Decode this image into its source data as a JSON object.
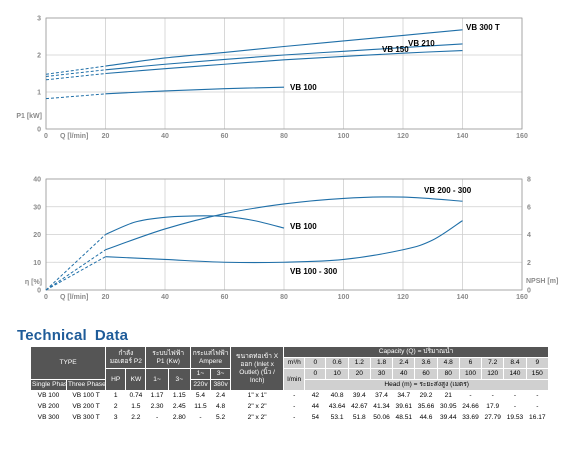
{
  "colors": {
    "curve": "#1f6fa8",
    "grid": "#cfcfcf",
    "axis": "#9a9a9a",
    "header": "#555555",
    "light_header": "#d0d0d0",
    "title": "#1f5c99"
  },
  "chart_data": [
    {
      "type": "line",
      "title": "",
      "xlabel": "Q [l/min]",
      "ylabel": "P1 [kW]",
      "xlim": [
        0,
        160
      ],
      "ylim": [
        0,
        3
      ],
      "xticks": [
        0,
        20,
        40,
        60,
        80,
        100,
        120,
        140,
        160
      ],
      "yticks": [
        0,
        1,
        2,
        3
      ],
      "grid": true,
      "series": [
        {
          "name": "VB 300 T",
          "dashed_x": [
            0,
            20
          ],
          "x": [
            20,
            40,
            60,
            80,
            100,
            120,
            140
          ],
          "y": [
            1.7,
            1.92,
            2.07,
            2.23,
            2.38,
            2.53,
            2.68
          ],
          "dash_y": [
            1.48,
            1.7
          ]
        },
        {
          "name": "VB 210",
          "x": [
            20,
            40,
            60,
            80,
            100,
            120,
            140
          ],
          "y": [
            1.6,
            1.75,
            1.88,
            2.0,
            2.1,
            2.2,
            2.3
          ],
          "dash_y": [
            1.42,
            1.6
          ]
        },
        {
          "name": "VB 150",
          "x": [
            20,
            40,
            60,
            80,
            100,
            120,
            140
          ],
          "y": [
            1.5,
            1.63,
            1.75,
            1.87,
            1.96,
            2.05,
            2.12
          ],
          "dash_y": [
            1.33,
            1.5
          ]
        },
        {
          "name": "VB 100",
          "x": [
            20,
            40,
            60,
            80
          ],
          "y": [
            0.95,
            1.03,
            1.09,
            1.13
          ],
          "dash_y": [
            0.82,
            0.95
          ]
        }
      ]
    },
    {
      "type": "line",
      "title": "",
      "xlabel": "Q [l/min]",
      "ylabel": "η [%]",
      "ylabel_right": "NPSH [m]",
      "xlim": [
        0,
        160
      ],
      "ylim": [
        0,
        40
      ],
      "ylim_right": [
        0,
        8
      ],
      "xticks": [
        0,
        20,
        40,
        60,
        80,
        100,
        120,
        140,
        160
      ],
      "yticks": [
        0,
        10,
        20,
        30,
        40
      ],
      "yticks_right": [
        0,
        2,
        4,
        6,
        8
      ],
      "grid": true,
      "series": [
        {
          "name": "VB 200 - 300",
          "x": [
            20,
            40,
            60,
            80,
            100,
            120,
            140
          ],
          "y": [
            14.5,
            22,
            27.5,
            31,
            33,
            33.5,
            32
          ],
          "dash_y": [
            0,
            14.5
          ]
        },
        {
          "name": "VB 100",
          "x": [
            20,
            30,
            40,
            50,
            60,
            70,
            80
          ],
          "y": [
            20,
            24.5,
            26.2,
            26.7,
            26.5,
            25,
            22.3
          ],
          "dash_y": [
            0,
            20
          ]
        },
        {
          "name": "VB 100 - 300",
          "axis": "right",
          "x": [
            20,
            40,
            60,
            80,
            100,
            120,
            130,
            140
          ],
          "y": [
            2.4,
            2.2,
            2.0,
            2.0,
            2.2,
            2.9,
            3.6,
            5.0
          ],
          "dash_y": [
            0,
            2.4
          ]
        }
      ]
    }
  ],
  "table": {
    "title_words": [
      "Technical",
      "Data"
    ],
    "type_label": "TYPE",
    "single_phase": "Single Phase",
    "three_phase": "Three Phase",
    "p2_label": "กำลังมอเตอร์ P2",
    "hp": "HP",
    "kw": "KW",
    "p1_label": "ระบบไฟฟ้า P1 (Kw)",
    "p1_1": "1~",
    "p1_3": "3~",
    "amp_label": "กระแสไฟฟ้า Ampere",
    "amp_1": "1~",
    "amp_1v": "220v",
    "amp_3": "3~",
    "amp_3v": "380v",
    "inlet_label": "ขนาดท่อเข้า X ออก (Inlet x Outlet) (นิ้ว / Inch)",
    "capacity_label": "Capacity (Q) = ปริมาณน้ำ",
    "m3h": "m³/h",
    "lmin": "l/min",
    "head_label": "Head (m) = ระยะส่งสูง (เมตร)",
    "m3h_values": [
      "0",
      "0.6",
      "1.2",
      "1.8",
      "2.4",
      "3.6",
      "4.8",
      "6",
      "7.2",
      "8.4",
      "9"
    ],
    "lmin_values": [
      "0",
      "10",
      "20",
      "30",
      "40",
      "60",
      "80",
      "100",
      "120",
      "140",
      "150"
    ],
    "rows": [
      {
        "single": "VB 100",
        "three": "VB 100 T",
        "hp": "1",
        "kw": "0.74",
        "p1_1": "1.17",
        "p1_3": "1.15",
        "a1": "5.4",
        "a3": "2.4",
        "io": "1\" x 1\"",
        "dash": "-",
        "head": [
          "42",
          "40.8",
          "39.4",
          "37.4",
          "34.7",
          "29.2",
          "21",
          "-",
          "-",
          "-",
          "-"
        ]
      },
      {
        "single": "VB 200",
        "three": "VB 200 T",
        "hp": "2",
        "kw": "1.5",
        "p1_1": "2.30",
        "p1_3": "2.45",
        "a1": "11.5",
        "a3": "4.8",
        "io": "2\" x 2\"",
        "dash": "-",
        "head": [
          "44",
          "43.64",
          "42.67",
          "41.34",
          "39.61",
          "35.66",
          "30.95",
          "24.66",
          "17.9",
          "-",
          "-"
        ]
      },
      {
        "single": "VB 300",
        "three": "VB 300 T",
        "hp": "3",
        "kw": "2.2",
        "p1_1": "-",
        "p1_3": "2.80",
        "a1": "-",
        "a3": "5.2",
        "io": "2\" x 2\"",
        "dash": "-",
        "head": [
          "54",
          "53.1",
          "51.8",
          "50.06",
          "48.51",
          "44.6",
          "39.44",
          "33.69",
          "27.79",
          "19.53",
          "16.17"
        ]
      }
    ]
  }
}
